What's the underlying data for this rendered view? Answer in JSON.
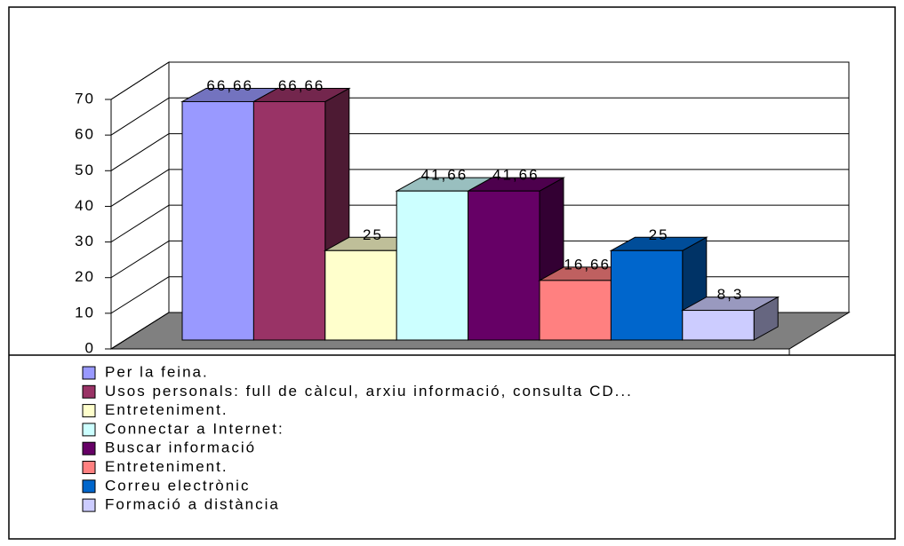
{
  "chart_data": {
    "type": "bar3d",
    "series": [
      {
        "name": "Per la feina.",
        "color": "#9999ff",
        "values": [
          66.66
        ],
        "value_labels": [
          "66,66"
        ]
      },
      {
        "name": "Usos personals: full de càlcul, arxiu informació, consulta CD...",
        "color": "#993366",
        "values": [
          66.66
        ],
        "value_labels": [
          "66,66"
        ]
      },
      {
        "name": "Entreteniment.",
        "color": "#ffffcc",
        "values": [
          25
        ],
        "value_labels": [
          "25"
        ]
      },
      {
        "name": "Connectar a Internet:",
        "color": "#ccffff",
        "values": [
          41.66
        ],
        "value_labels": [
          "41,66"
        ]
      },
      {
        "name": "Buscar informació",
        "color": "#660066",
        "values": [
          41.66
        ],
        "value_labels": [
          "41,66"
        ]
      },
      {
        "name": "Entreteniment.",
        "color": "#ff8080",
        "values": [
          16.66
        ],
        "value_labels": [
          "16,66"
        ]
      },
      {
        "name": "Correu electrònic",
        "color": "#0066cc",
        "values": [
          25
        ],
        "value_labels": [
          "25"
        ]
      },
      {
        "name": "Formació a distància",
        "color": "#ccccff",
        "values": [
          8.3
        ],
        "value_labels": [
          "8,3"
        ]
      }
    ],
    "ylim": [
      0,
      70
    ],
    "yticks": [
      0,
      10,
      20,
      30,
      40,
      50,
      60,
      70
    ],
    "grid": true,
    "legend": "bottom"
  }
}
